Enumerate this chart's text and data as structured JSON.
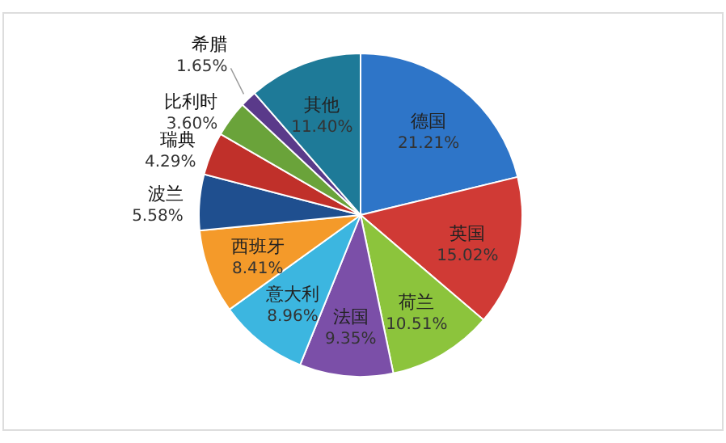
{
  "chart_data": {
    "type": "pie",
    "categories": [
      "德国",
      "英国",
      "荷兰",
      "法国",
      "意大利",
      "西班牙",
      "波兰",
      "瑞典",
      "比利时",
      "希腊",
      "其他"
    ],
    "values": [
      21.21,
      15.02,
      10.51,
      9.35,
      8.96,
      8.41,
      5.58,
      4.29,
      3.6,
      1.65,
      11.4
    ],
    "value_labels": [
      "21.21%",
      "15.02%",
      "10.51%",
      "9.35%",
      "8.96%",
      "8.41%",
      "5.58%",
      "4.29%",
      "3.60%",
      "1.65%",
      "11.40%"
    ],
    "colors": [
      "#2e75c8",
      "#d03a35",
      "#8cc43c",
      "#7b4fa8",
      "#3cb6e0",
      "#f49a2a",
      "#1f4f8f",
      "#c0302a",
      "#6aa33a",
      "#5a3a8a",
      "#1e7a98"
    ]
  }
}
